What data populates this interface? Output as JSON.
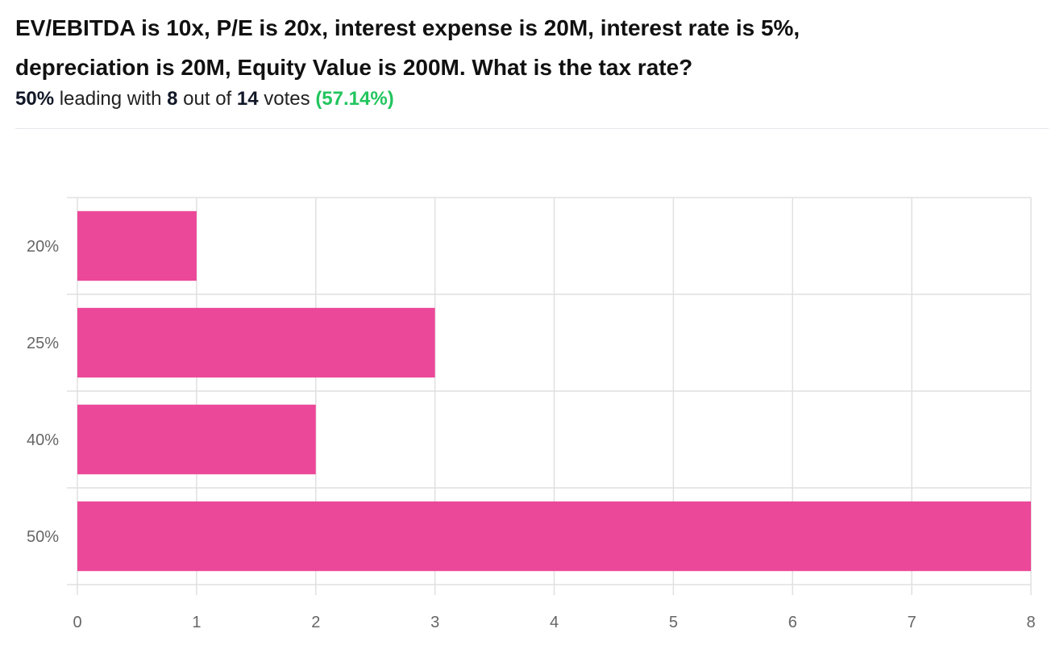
{
  "poll": {
    "question_line1": "EV/EBITDA is 10x, P/E is 20x, interest expense is 20M, interest rate is 5%,",
    "question_line2": "depreciation is 20M, Equity Value is 200M. What is the tax rate?",
    "summary": {
      "leading_value": "50%",
      "leading_text": "leading with",
      "count": "8",
      "out_of_text": "out of",
      "total": "14",
      "votes_text": "votes",
      "percentage": "(57.14%)"
    }
  },
  "colors": {
    "bar": "#ec4899",
    "grid": "#e0e0e0",
    "percentage": "#22c55e",
    "axis_text": "#666666"
  },
  "chart_data": {
    "type": "bar",
    "orientation": "horizontal",
    "categories": [
      "20%",
      "25%",
      "40%",
      "50%"
    ],
    "values": [
      1,
      3,
      2,
      8
    ],
    "xlim": [
      0,
      8
    ],
    "x_ticks": [
      "0",
      "1",
      "2",
      "3",
      "4",
      "5",
      "6",
      "7",
      "8"
    ],
    "grid": true
  }
}
